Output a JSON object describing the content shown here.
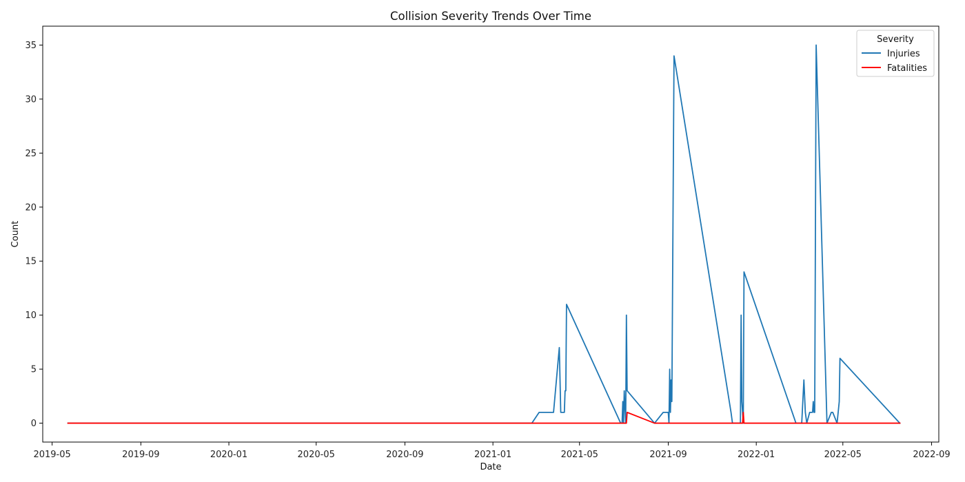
{
  "chart_data": {
    "type": "line",
    "title": "Collision Severity Trends Over Time",
    "xlabel": "Date",
    "ylabel": "Count",
    "xlim": [
      "2019-04-18",
      "2022-09-11"
    ],
    "ylim": [
      -1.75,
      36.75
    ],
    "x_ticks": [
      "2019-05",
      "2019-09",
      "2020-01",
      "2020-05",
      "2020-09",
      "2021-01",
      "2021-05",
      "2021-09",
      "2022-01",
      "2022-05",
      "2022-09"
    ],
    "y_ticks": [
      0,
      5,
      10,
      15,
      20,
      25,
      30,
      35
    ],
    "grid": false,
    "legend": {
      "title": "Severity",
      "position": "top-right"
    },
    "series": [
      {
        "name": "Injuries",
        "color": "#1f77b4",
        "points": [
          [
            "2019-05-23",
            0
          ],
          [
            "2021-02-24",
            0
          ],
          [
            "2021-03-06",
            1
          ],
          [
            "2021-03-26",
            1
          ],
          [
            "2021-04-03",
            7
          ],
          [
            "2021-04-05",
            1
          ],
          [
            "2021-04-10",
            1
          ],
          [
            "2021-04-11",
            3
          ],
          [
            "2021-04-12",
            3
          ],
          [
            "2021-04-13",
            11
          ],
          [
            "2021-06-27",
            0
          ],
          [
            "2021-06-29",
            0
          ],
          [
            "2021-06-30",
            2
          ],
          [
            "2021-07-01",
            0
          ],
          [
            "2021-07-02",
            3
          ],
          [
            "2021-07-04",
            0
          ],
          [
            "2021-07-05",
            10
          ],
          [
            "2021-07-06",
            3
          ],
          [
            "2021-08-13",
            0
          ],
          [
            "2021-08-25",
            1
          ],
          [
            "2021-09-01",
            1
          ],
          [
            "2021-09-02",
            0
          ],
          [
            "2021-09-03",
            5
          ],
          [
            "2021-09-04",
            1
          ],
          [
            "2021-09-05",
            4
          ],
          [
            "2021-09-06",
            2
          ],
          [
            "2021-09-09",
            34
          ],
          [
            "2021-11-27",
            1
          ],
          [
            "2021-11-29",
            0
          ],
          [
            "2021-12-10",
            0
          ],
          [
            "2021-12-11",
            10
          ],
          [
            "2021-12-12",
            2
          ],
          [
            "2021-12-14",
            0
          ],
          [
            "2021-12-15",
            14
          ],
          [
            "2022-02-25",
            0
          ],
          [
            "2022-03-05",
            0
          ],
          [
            "2022-03-08",
            4
          ],
          [
            "2022-03-10",
            1
          ],
          [
            "2022-03-12",
            0
          ],
          [
            "2022-03-16",
            1
          ],
          [
            "2022-03-20",
            1
          ],
          [
            "2022-03-21",
            2
          ],
          [
            "2022-03-22",
            1
          ],
          [
            "2022-03-23",
            1
          ],
          [
            "2022-03-25",
            35
          ],
          [
            "2022-04-09",
            0
          ],
          [
            "2022-04-15",
            1
          ],
          [
            "2022-04-17",
            1
          ],
          [
            "2022-04-23",
            0
          ],
          [
            "2022-04-26",
            2
          ],
          [
            "2022-04-27",
            6
          ],
          [
            "2022-07-19",
            0
          ]
        ]
      },
      {
        "name": "Fatalities",
        "color": "#ff0000",
        "points": [
          [
            "2019-05-23",
            0
          ],
          [
            "2021-07-05",
            0
          ],
          [
            "2021-07-06",
            1
          ],
          [
            "2021-08-13",
            0
          ],
          [
            "2021-12-13",
            0
          ],
          [
            "2021-12-14",
            1
          ],
          [
            "2021-12-15",
            0
          ],
          [
            "2022-07-19",
            0
          ]
        ]
      }
    ]
  }
}
